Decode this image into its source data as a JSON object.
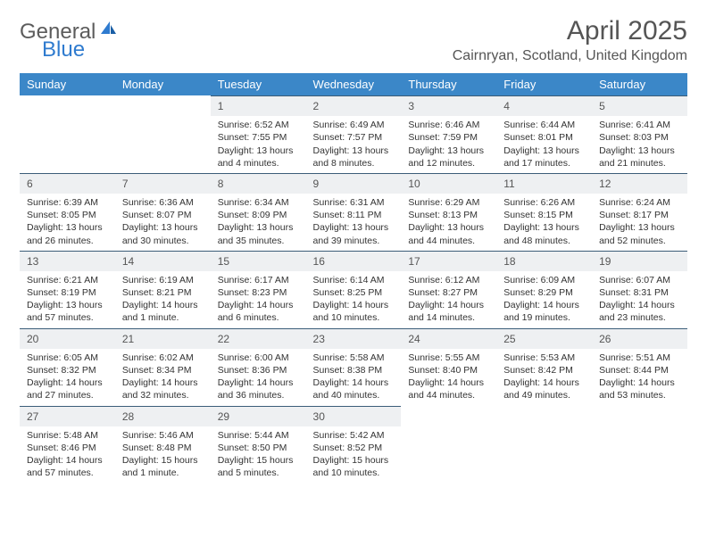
{
  "logo": {
    "general": "General",
    "blue": "Blue"
  },
  "title": {
    "month": "April 2025",
    "location": "Cairnryan, Scotland, United Kingdom"
  },
  "colors": {
    "header_bg": "#3b87c8",
    "header_text": "#ffffff",
    "daynum_bg": "#eef0f2",
    "daynum_border": "#3b5d78",
    "body_text": "#333333",
    "logo_gray": "#5c5c5c",
    "logo_blue": "#2f7bcf"
  },
  "typography": {
    "month_fontsize": 30,
    "location_fontsize": 16,
    "header_fontsize": 13,
    "cell_fontsize": 10.5
  },
  "weekdays": [
    "Sunday",
    "Monday",
    "Tuesday",
    "Wednesday",
    "Thursday",
    "Friday",
    "Saturday"
  ],
  "weeks": [
    [
      {
        "n": "",
        "sr": "",
        "ss": "",
        "dl": ""
      },
      {
        "n": "",
        "sr": "",
        "ss": "",
        "dl": ""
      },
      {
        "n": "1",
        "sr": "Sunrise: 6:52 AM",
        "ss": "Sunset: 7:55 PM",
        "dl": "Daylight: 13 hours and 4 minutes."
      },
      {
        "n": "2",
        "sr": "Sunrise: 6:49 AM",
        "ss": "Sunset: 7:57 PM",
        "dl": "Daylight: 13 hours and 8 minutes."
      },
      {
        "n": "3",
        "sr": "Sunrise: 6:46 AM",
        "ss": "Sunset: 7:59 PM",
        "dl": "Daylight: 13 hours and 12 minutes."
      },
      {
        "n": "4",
        "sr": "Sunrise: 6:44 AM",
        "ss": "Sunset: 8:01 PM",
        "dl": "Daylight: 13 hours and 17 minutes."
      },
      {
        "n": "5",
        "sr": "Sunrise: 6:41 AM",
        "ss": "Sunset: 8:03 PM",
        "dl": "Daylight: 13 hours and 21 minutes."
      }
    ],
    [
      {
        "n": "6",
        "sr": "Sunrise: 6:39 AM",
        "ss": "Sunset: 8:05 PM",
        "dl": "Daylight: 13 hours and 26 minutes."
      },
      {
        "n": "7",
        "sr": "Sunrise: 6:36 AM",
        "ss": "Sunset: 8:07 PM",
        "dl": "Daylight: 13 hours and 30 minutes."
      },
      {
        "n": "8",
        "sr": "Sunrise: 6:34 AM",
        "ss": "Sunset: 8:09 PM",
        "dl": "Daylight: 13 hours and 35 minutes."
      },
      {
        "n": "9",
        "sr": "Sunrise: 6:31 AM",
        "ss": "Sunset: 8:11 PM",
        "dl": "Daylight: 13 hours and 39 minutes."
      },
      {
        "n": "10",
        "sr": "Sunrise: 6:29 AM",
        "ss": "Sunset: 8:13 PM",
        "dl": "Daylight: 13 hours and 44 minutes."
      },
      {
        "n": "11",
        "sr": "Sunrise: 6:26 AM",
        "ss": "Sunset: 8:15 PM",
        "dl": "Daylight: 13 hours and 48 minutes."
      },
      {
        "n": "12",
        "sr": "Sunrise: 6:24 AM",
        "ss": "Sunset: 8:17 PM",
        "dl": "Daylight: 13 hours and 52 minutes."
      }
    ],
    [
      {
        "n": "13",
        "sr": "Sunrise: 6:21 AM",
        "ss": "Sunset: 8:19 PM",
        "dl": "Daylight: 13 hours and 57 minutes."
      },
      {
        "n": "14",
        "sr": "Sunrise: 6:19 AM",
        "ss": "Sunset: 8:21 PM",
        "dl": "Daylight: 14 hours and 1 minute."
      },
      {
        "n": "15",
        "sr": "Sunrise: 6:17 AM",
        "ss": "Sunset: 8:23 PM",
        "dl": "Daylight: 14 hours and 6 minutes."
      },
      {
        "n": "16",
        "sr": "Sunrise: 6:14 AM",
        "ss": "Sunset: 8:25 PM",
        "dl": "Daylight: 14 hours and 10 minutes."
      },
      {
        "n": "17",
        "sr": "Sunrise: 6:12 AM",
        "ss": "Sunset: 8:27 PM",
        "dl": "Daylight: 14 hours and 14 minutes."
      },
      {
        "n": "18",
        "sr": "Sunrise: 6:09 AM",
        "ss": "Sunset: 8:29 PM",
        "dl": "Daylight: 14 hours and 19 minutes."
      },
      {
        "n": "19",
        "sr": "Sunrise: 6:07 AM",
        "ss": "Sunset: 8:31 PM",
        "dl": "Daylight: 14 hours and 23 minutes."
      }
    ],
    [
      {
        "n": "20",
        "sr": "Sunrise: 6:05 AM",
        "ss": "Sunset: 8:32 PM",
        "dl": "Daylight: 14 hours and 27 minutes."
      },
      {
        "n": "21",
        "sr": "Sunrise: 6:02 AM",
        "ss": "Sunset: 8:34 PM",
        "dl": "Daylight: 14 hours and 32 minutes."
      },
      {
        "n": "22",
        "sr": "Sunrise: 6:00 AM",
        "ss": "Sunset: 8:36 PM",
        "dl": "Daylight: 14 hours and 36 minutes."
      },
      {
        "n": "23",
        "sr": "Sunrise: 5:58 AM",
        "ss": "Sunset: 8:38 PM",
        "dl": "Daylight: 14 hours and 40 minutes."
      },
      {
        "n": "24",
        "sr": "Sunrise: 5:55 AM",
        "ss": "Sunset: 8:40 PM",
        "dl": "Daylight: 14 hours and 44 minutes."
      },
      {
        "n": "25",
        "sr": "Sunrise: 5:53 AM",
        "ss": "Sunset: 8:42 PM",
        "dl": "Daylight: 14 hours and 49 minutes."
      },
      {
        "n": "26",
        "sr": "Sunrise: 5:51 AM",
        "ss": "Sunset: 8:44 PM",
        "dl": "Daylight: 14 hours and 53 minutes."
      }
    ],
    [
      {
        "n": "27",
        "sr": "Sunrise: 5:48 AM",
        "ss": "Sunset: 8:46 PM",
        "dl": "Daylight: 14 hours and 57 minutes."
      },
      {
        "n": "28",
        "sr": "Sunrise: 5:46 AM",
        "ss": "Sunset: 8:48 PM",
        "dl": "Daylight: 15 hours and 1 minute."
      },
      {
        "n": "29",
        "sr": "Sunrise: 5:44 AM",
        "ss": "Sunset: 8:50 PM",
        "dl": "Daylight: 15 hours and 5 minutes."
      },
      {
        "n": "30",
        "sr": "Sunrise: 5:42 AM",
        "ss": "Sunset: 8:52 PM",
        "dl": "Daylight: 15 hours and 10 minutes."
      },
      {
        "n": "",
        "sr": "",
        "ss": "",
        "dl": ""
      },
      {
        "n": "",
        "sr": "",
        "ss": "",
        "dl": ""
      },
      {
        "n": "",
        "sr": "",
        "ss": "",
        "dl": ""
      }
    ]
  ]
}
